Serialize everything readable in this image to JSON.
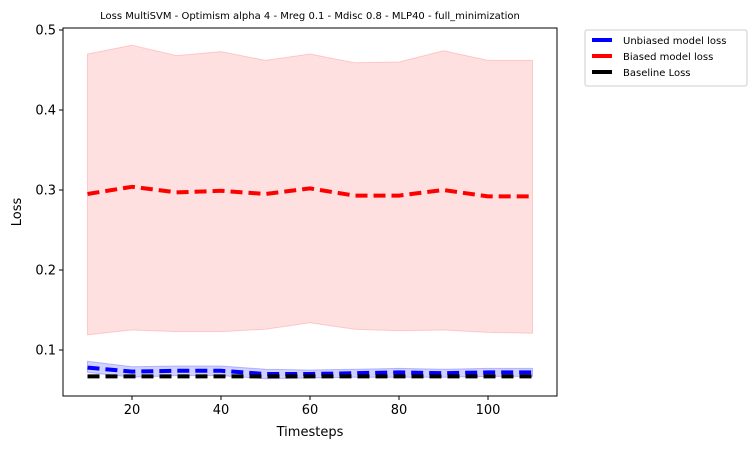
{
  "chart_data": {
    "type": "line",
    "title": "Loss MultiSVM - Optimism alpha 4 - Mreg 0.1 - Mdisc 0.8 - MLP40 - full_minimization",
    "xlabel": "Timesteps",
    "ylabel": "Loss",
    "xlim": [
      4.5,
      115.5
    ],
    "ylim": [
      0.0425,
      0.5025
    ],
    "xticks": [
      20,
      40,
      60,
      80,
      100
    ],
    "yticks": [
      0.1,
      0.2,
      0.3,
      0.4,
      0.5
    ],
    "x": [
      10,
      20,
      30,
      40,
      50,
      60,
      70,
      80,
      90,
      100,
      110
    ],
    "legend_position": "outside-top-right",
    "series": [
      {
        "name": "Unbiased model loss",
        "color": "#0000ff",
        "band_color": "#0000ff",
        "values": [
          0.078,
          0.073,
          0.074,
          0.074,
          0.07,
          0.07,
          0.071,
          0.072,
          0.071,
          0.072,
          0.072
        ],
        "lower": [
          0.072,
          0.066,
          0.068,
          0.068,
          0.064,
          0.065,
          0.066,
          0.066,
          0.066,
          0.067,
          0.067
        ],
        "upper": [
          0.086,
          0.079,
          0.08,
          0.08,
          0.076,
          0.075,
          0.076,
          0.077,
          0.076,
          0.077,
          0.077
        ]
      },
      {
        "name": "Biased model loss",
        "color": "#ff0000",
        "band_color": "#ff0000",
        "values": [
          0.295,
          0.304,
          0.297,
          0.299,
          0.295,
          0.302,
          0.293,
          0.293,
          0.3,
          0.292,
          0.292
        ],
        "lower": [
          0.119,
          0.125,
          0.123,
          0.123,
          0.126,
          0.134,
          0.126,
          0.124,
          0.125,
          0.122,
          0.121
        ],
        "upper": [
          0.47,
          0.481,
          0.468,
          0.473,
          0.462,
          0.47,
          0.459,
          0.46,
          0.474,
          0.462,
          0.462
        ]
      },
      {
        "name": "Baseline Loss",
        "color": "#000000",
        "band_color": null,
        "values": [
          0.067,
          0.067,
          0.067,
          0.067,
          0.067,
          0.067,
          0.067,
          0.067,
          0.067,
          0.067,
          0.067
        ]
      }
    ]
  }
}
